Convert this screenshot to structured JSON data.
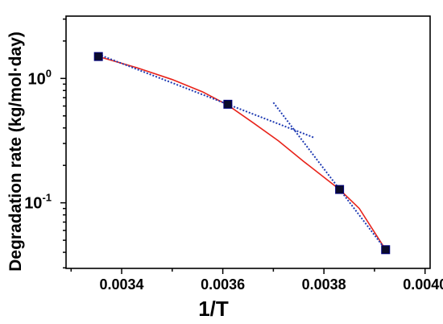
{
  "chart_data": {
    "type": "scatter",
    "title": "",
    "xlabel": "1/T",
    "ylabel": "Degradation rate (kg/mol·day)",
    "xlim": [
      0.00329,
      0.00401
    ],
    "ylim": [
      0.0297,
      3.17
    ],
    "yscale": "log",
    "grid": false,
    "x_ticks": [
      0.0034,
      0.0036,
      0.0038,
      0.004
    ],
    "x_tick_labels": [
      "0.0034",
      "0.0036",
      "0.0038",
      "0.0040"
    ],
    "y_ticks": [
      1.0,
      0.1
    ],
    "y_tick_labels": [
      {
        "base": "10",
        "exp": "0"
      },
      {
        "base": "10",
        "exp": "-1"
      }
    ],
    "series": [
      {
        "type": "scatter",
        "color": "#000080",
        "marker": "square",
        "x": [
          0.003354,
          0.00361,
          0.003831,
          0.003922
        ],
        "y": [
          1.5,
          0.62,
          0.128,
          0.042
        ]
      },
      {
        "type": "line",
        "style": "solid",
        "color": "#e8231a",
        "x": [
          0.003354,
          0.00343,
          0.0035,
          0.00356,
          0.00361,
          0.00366,
          0.00371,
          0.00376,
          0.003831,
          0.00387,
          0.003922
        ],
        "y": [
          1.5,
          1.22,
          0.98,
          0.78,
          0.61,
          0.44,
          0.315,
          0.215,
          0.128,
          0.09,
          0.042
        ]
      },
      {
        "type": "line",
        "style": "dotted",
        "color": "#1f3bb3",
        "x": [
          0.003354,
          0.00378
        ],
        "y": [
          1.56,
          0.335
        ]
      },
      {
        "type": "line",
        "style": "dotted",
        "color": "#1f3bb3",
        "x": [
          0.0037,
          0.003922
        ],
        "y": [
          0.64,
          0.042
        ]
      }
    ]
  }
}
